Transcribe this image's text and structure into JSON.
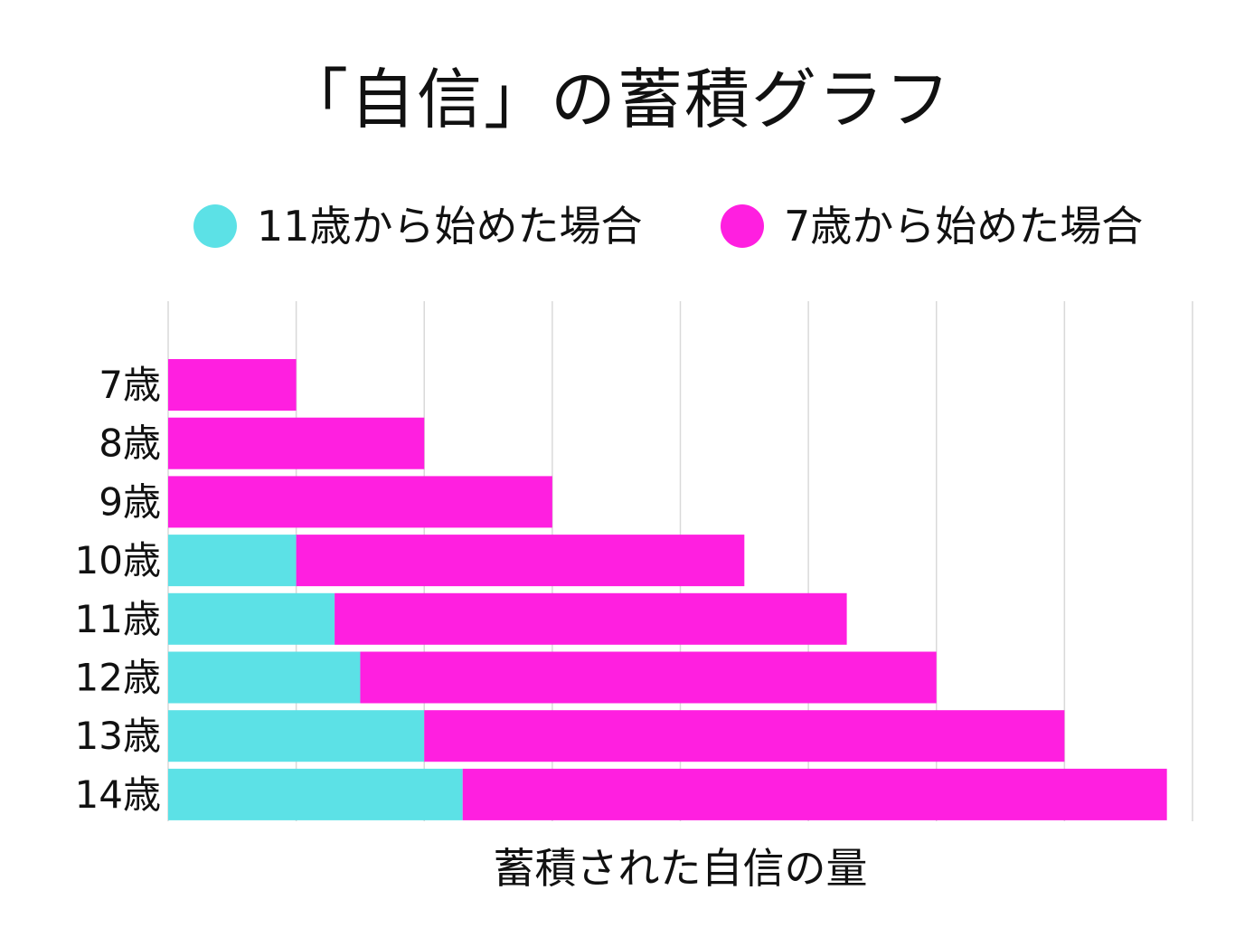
{
  "chart_data": {
    "type": "bar",
    "orientation": "horizontal",
    "stacked": true,
    "title": "「自信」の蓄積グラフ",
    "xlabel": "蓄積された自信の量",
    "ylabel": "",
    "categories": [
      "7歳",
      "8歳",
      "9歳",
      "10歳",
      "11歳",
      "12歳",
      "13歳",
      "14歳"
    ],
    "series": [
      {
        "name": "11歳から始めた場合",
        "color": "#5ce1e6",
        "values": [
          0,
          0,
          0,
          1,
          1.3,
          1.5,
          2,
          2.3
        ]
      },
      {
        "name": "7歳から始めた場合",
        "color": "#ff1fe0",
        "values": [
          1,
          2,
          3,
          3.5,
          4,
          4.5,
          5,
          5.5
        ]
      }
    ],
    "xlim": [
      0,
      8
    ],
    "grid": true,
    "legend_position": "top"
  }
}
